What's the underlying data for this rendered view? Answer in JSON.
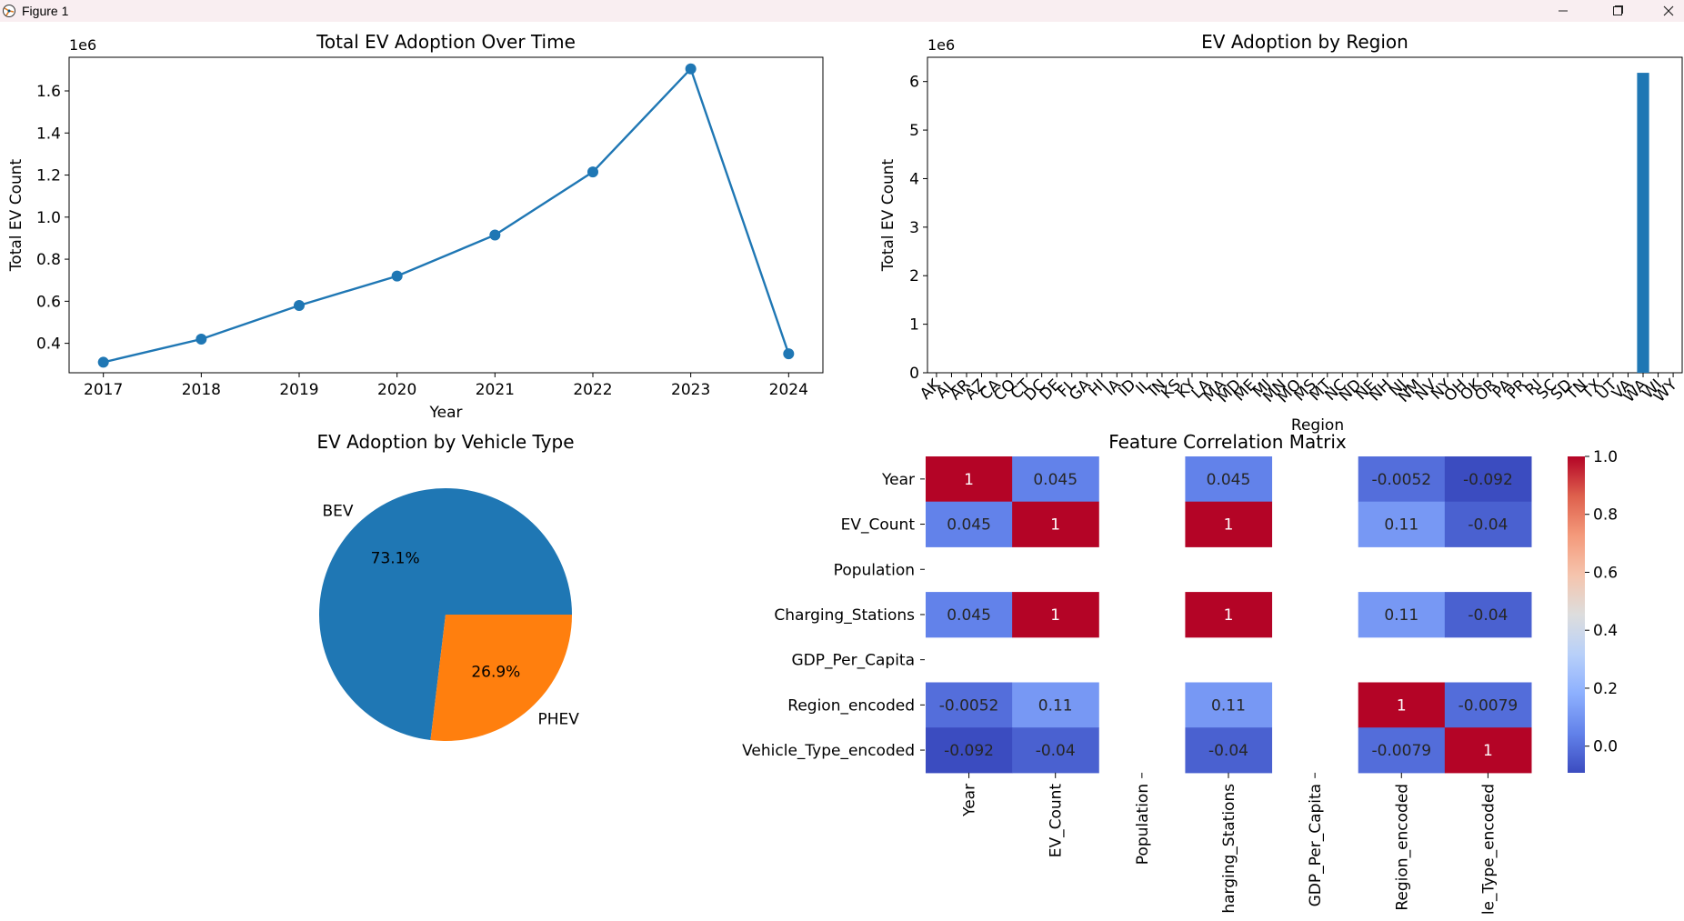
{
  "window": {
    "title": "Figure 1",
    "controls": [
      "minimize",
      "maximize",
      "close"
    ]
  },
  "chart_data": [
    {
      "type": "line",
      "title": "Total EV Adoption Over Time",
      "xlabel": "Year",
      "ylabel": "Total EV Count",
      "offset_label": "1e6",
      "x": [
        2017,
        2018,
        2019,
        2020,
        2021,
        2022,
        2023,
        2024
      ],
      "values": [
        0.31,
        0.42,
        0.58,
        0.72,
        0.915,
        1.215,
        1.705,
        0.35
      ],
      "ylim": [
        0.26,
        1.76
      ],
      "yticks": [
        "0.4",
        "0.6",
        "0.8",
        "1.0",
        "1.2",
        "1.4",
        "1.6"
      ],
      "color": "#1f77b4"
    },
    {
      "type": "bar",
      "title": "EV Adoption by Region",
      "xlabel": "Region",
      "ylabel": "Total EV Count",
      "offset_label": "1e6",
      "categories": [
        "AK",
        "AL",
        "AR",
        "AZ",
        "CA",
        "CO",
        "CT",
        "DC",
        "DE",
        "FL",
        "GA",
        "HI",
        "IA",
        "ID",
        "IL",
        "IN",
        "KS",
        "KY",
        "LA",
        "MA",
        "MD",
        "ME",
        "MI",
        "MN",
        "MO",
        "MS",
        "MT",
        "NC",
        "ND",
        "NE",
        "NH",
        "NJ",
        "NM",
        "NV",
        "NY",
        "OH",
        "OK",
        "OR",
        "PA",
        "PR",
        "RI",
        "SC",
        "SD",
        "TN",
        "TX",
        "UT",
        "VA",
        "WA",
        "WI",
        "WY"
      ],
      "values": [
        0,
        0,
        0,
        0,
        0,
        0,
        0,
        0,
        0,
        0,
        0,
        0,
        0,
        0,
        0,
        0,
        0,
        0,
        0,
        0,
        0,
        0,
        0,
        0,
        0,
        0,
        0,
        0,
        0,
        0,
        0,
        0,
        0,
        0,
        0,
        0,
        0,
        0,
        0,
        0,
        0,
        0,
        0,
        0,
        0,
        0,
        0,
        6.18,
        0,
        0
      ],
      "ylim": [
        0,
        6.5
      ],
      "yticks": [
        "0",
        "1",
        "2",
        "3",
        "4",
        "5",
        "6"
      ],
      "color": "#1f77b4"
    },
    {
      "type": "pie",
      "title": "EV Adoption by Vehicle Type",
      "labels": [
        "BEV",
        "PHEV"
      ],
      "values": [
        73.1,
        26.9
      ],
      "pct_labels": [
        "73.1%",
        "26.9%"
      ],
      "colors": [
        "#1f77b4",
        "#ff7f0e"
      ]
    },
    {
      "type": "heatmap",
      "title": "Feature Correlation Matrix",
      "row_labels": [
        "Year",
        "EV_Count",
        "Population",
        "Charging_Stations",
        "GDP_Per_Capita",
        "Region_encoded",
        "Vehicle_Type_encoded"
      ],
      "col_labels": [
        "Year",
        "EV_Count",
        "Population",
        "harging_Stations",
        "GDP_Per_Capita",
        "Region_encoded",
        "le_Type_encoded"
      ],
      "matrix": [
        [
          1,
          0.045,
          null,
          0.045,
          null,
          -0.0052,
          -0.092
        ],
        [
          0.045,
          1,
          null,
          1,
          null,
          0.11,
          -0.04
        ],
        [
          null,
          null,
          null,
          null,
          null,
          null,
          null
        ],
        [
          0.045,
          1,
          null,
          1,
          null,
          0.11,
          -0.04
        ],
        [
          null,
          null,
          null,
          null,
          null,
          null,
          null
        ],
        [
          -0.0052,
          0.11,
          null,
          0.11,
          null,
          1,
          -0.0079
        ],
        [
          -0.092,
          -0.04,
          null,
          -0.04,
          null,
          -0.0079,
          1
        ]
      ],
      "cell_text": [
        [
          "1",
          "0.045",
          "",
          "0.045",
          "",
          "-0.0052",
          "-0.092"
        ],
        [
          "0.045",
          "1",
          "",
          "1",
          "",
          "0.11",
          "-0.04"
        ],
        [
          "",
          "",
          "",
          "",
          "",
          "",
          ""
        ],
        [
          "0.045",
          "1",
          "",
          "1",
          "",
          "0.11",
          "-0.04"
        ],
        [
          "",
          "",
          "",
          "",
          "",
          "",
          ""
        ],
        [
          "-0.0052",
          "0.11",
          "",
          "0.11",
          "",
          "1",
          "-0.0079"
        ],
        [
          "-0.092",
          "-0.04",
          "",
          "-0.04",
          "",
          "-0.0079",
          "1"
        ]
      ],
      "colorbar_range": [
        -0.092,
        1.0
      ],
      "colorbar_ticks": [
        "0.0",
        "0.2",
        "0.4",
        "0.6",
        "0.8",
        "1.0"
      ],
      "colormap": "coolwarm"
    }
  ]
}
